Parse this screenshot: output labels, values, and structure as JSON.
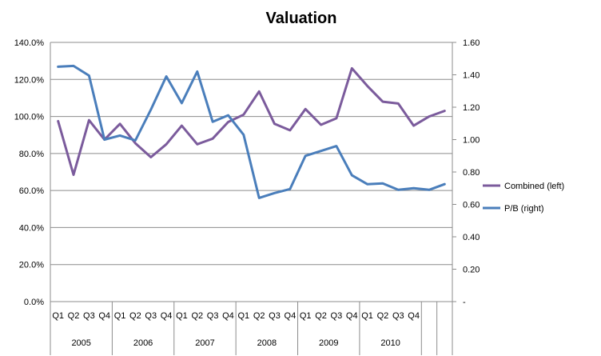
{
  "chart_data": {
    "type": "line",
    "title": "Valuation",
    "categories": [
      "Q1",
      "Q2",
      "Q3",
      "Q4",
      "Q1",
      "Q2",
      "Q3",
      "Q4",
      "Q1",
      "Q2",
      "Q3",
      "Q4",
      "Q1",
      "Q2",
      "Q3",
      "Q4",
      "Q1",
      "Q2",
      "Q3",
      "Q4",
      "Q1",
      "Q2",
      "Q3",
      "Q4",
      "",
      ""
    ],
    "groups": [
      {
        "label": "2005",
        "count": 4
      },
      {
        "label": "2006",
        "count": 4
      },
      {
        "label": "2007",
        "count": 4
      },
      {
        "label": "2008",
        "count": 4
      },
      {
        "label": "2009",
        "count": 4
      },
      {
        "label": "2010",
        "count": 4
      }
    ],
    "left_axis": {
      "min": 0,
      "max": 140,
      "step": 20,
      "tick_labels": [
        "0.0%",
        "20.0%",
        "40.0%",
        "60.0%",
        "80.0%",
        "100.0%",
        "120.0%",
        "140.0%"
      ]
    },
    "right_axis": {
      "min": 0,
      "max": 1.6,
      "step": 0.2,
      "tick_labels": [
        "-",
        "0.20",
        "0.40",
        "0.60",
        "0.80",
        "1.00",
        "1.20",
        "1.40",
        "1.60"
      ]
    },
    "grid": true,
    "legend_position": "right",
    "series": [
      {
        "name": "Combined (left)",
        "axis": "left",
        "color": "#7B5B9C",
        "values": [
          97.5,
          68.5,
          98,
          87.5,
          96,
          85.5,
          78,
          85,
          95,
          85,
          88,
          97,
          101,
          113.5,
          96,
          92.5,
          104,
          95.5,
          99,
          126,
          116.5,
          108,
          107,
          95,
          100,
          103
        ]
      },
      {
        "name": "P/B (right)",
        "axis": "right",
        "color": "#4A7EBB",
        "values": [
          1.45,
          1.455,
          1.395,
          1.0,
          1.025,
          0.995,
          1.185,
          1.39,
          1.225,
          1.42,
          1.11,
          1.15,
          1.03,
          0.64,
          0.67,
          0.695,
          0.9,
          0.93,
          0.96,
          0.78,
          0.725,
          0.73,
          0.69,
          0.7,
          0.69,
          0.725
        ]
      }
    ]
  }
}
